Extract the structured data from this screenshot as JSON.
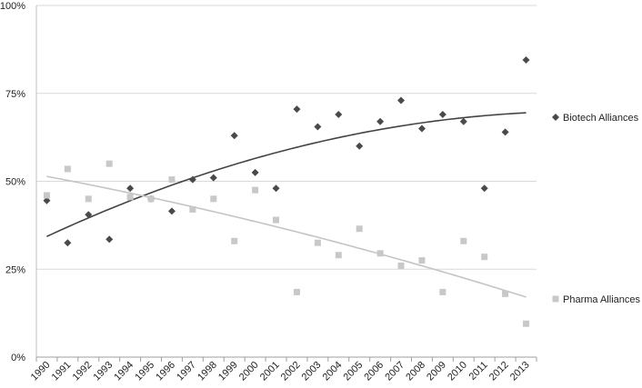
{
  "chart_data": {
    "type": "scatter",
    "categories": [
      "1990",
      "1991",
      "1992",
      "1993",
      "1994",
      "1995",
      "1996",
      "1997",
      "1998",
      "1999",
      "2000",
      "2001",
      "2002",
      "2003",
      "2004",
      "2005",
      "2006",
      "2007",
      "2008",
      "2009",
      "2010",
      "2011",
      "2012",
      "2013"
    ],
    "ylim": [
      0,
      100
    ],
    "yticks": [
      "0%",
      "25%",
      "50%",
      "75%",
      "100%"
    ],
    "grid": true,
    "legend_position": "right",
    "series": [
      {
        "name": "Biotech Alliances",
        "marker": "diamond",
        "color": "#4a4a4a",
        "values": [
          44.5,
          32.5,
          40.5,
          33.5,
          48,
          45,
          41.5,
          50.5,
          51,
          63,
          52.5,
          48,
          70.5,
          65.5,
          69,
          60,
          67,
          73,
          65,
          69,
          67,
          48,
          64,
          84.5
        ],
        "trend_color": "#444444"
      },
      {
        "name": "Pharma Alliances",
        "marker": "square",
        "color": "#c8c8c8",
        "values": [
          46,
          53.5,
          45,
          55,
          45.5,
          45,
          50.5,
          42,
          45,
          33,
          47.5,
          39,
          18.5,
          32.5,
          29,
          36.5,
          29.5,
          26,
          27.5,
          18.5,
          33,
          28.5,
          18,
          9.5
        ],
        "trend_color": "#c4c4c4"
      }
    ]
  }
}
